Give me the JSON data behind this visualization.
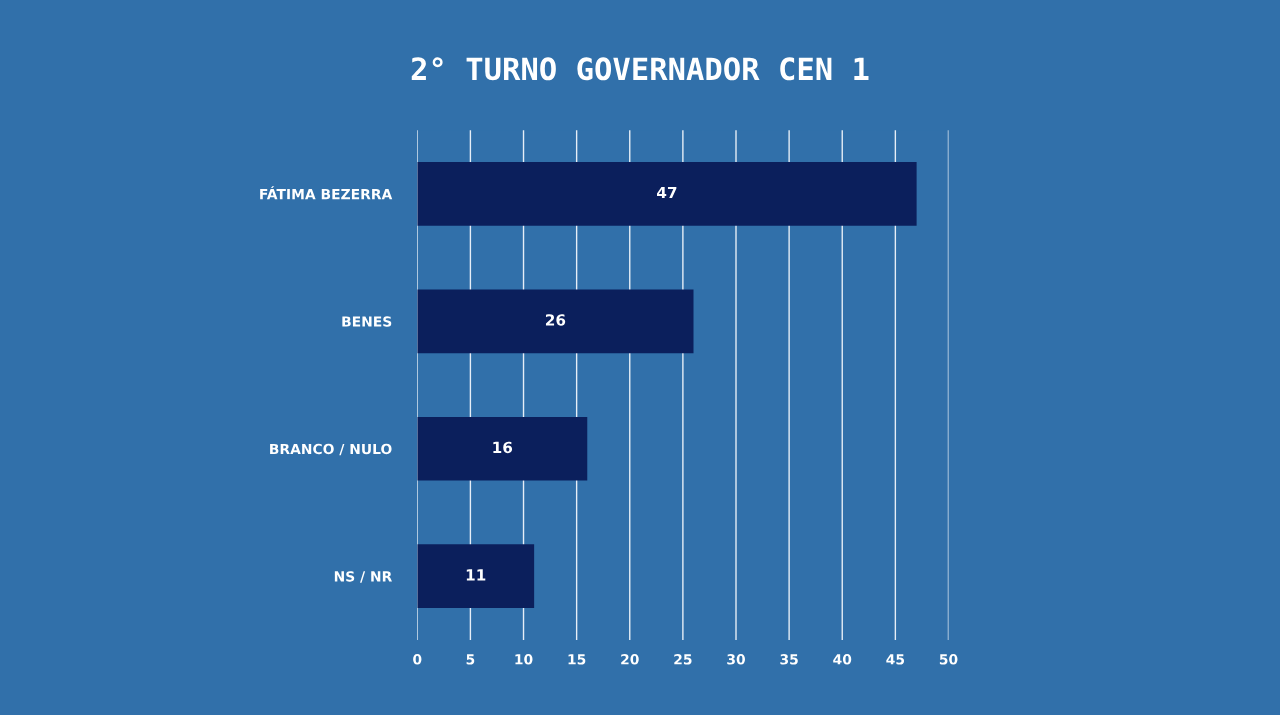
{
  "chart_data": {
    "type": "bar",
    "orientation": "horizontal",
    "title": "2° TURNO GOVERNADOR CEN 1",
    "categories": [
      "FÁTIMA BEZERRA",
      "BENES",
      "BRANCO / NULO",
      "NS / NR"
    ],
    "values": [
      47,
      26,
      16,
      11
    ],
    "color": "#0b1f5c",
    "xlim": [
      0,
      50
    ],
    "xticks": [
      0,
      5,
      10,
      15,
      20,
      25,
      30,
      35,
      40,
      45,
      50
    ],
    "grid": "x",
    "data_labels": true
  }
}
